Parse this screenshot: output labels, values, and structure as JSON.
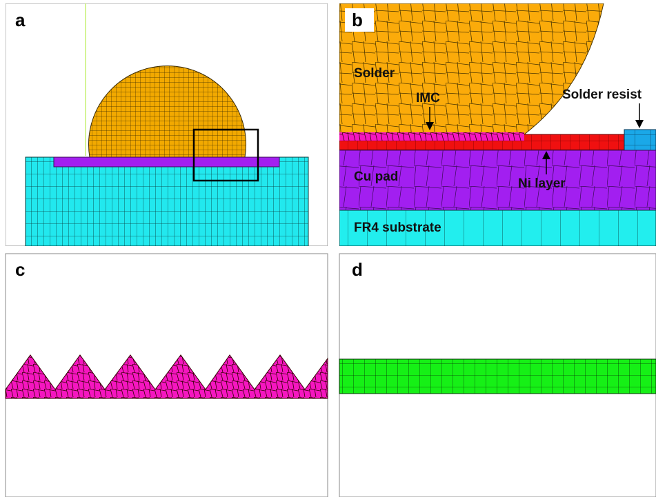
{
  "panels": [
    {
      "label": "a"
    },
    {
      "label": "b",
      "annotations": [
        "Solder",
        "IMC",
        "Solder resist",
        "Cu pad",
        "Ni layer",
        "FR4 substrate"
      ]
    },
    {
      "label": "c"
    },
    {
      "label": "d"
    }
  ]
}
